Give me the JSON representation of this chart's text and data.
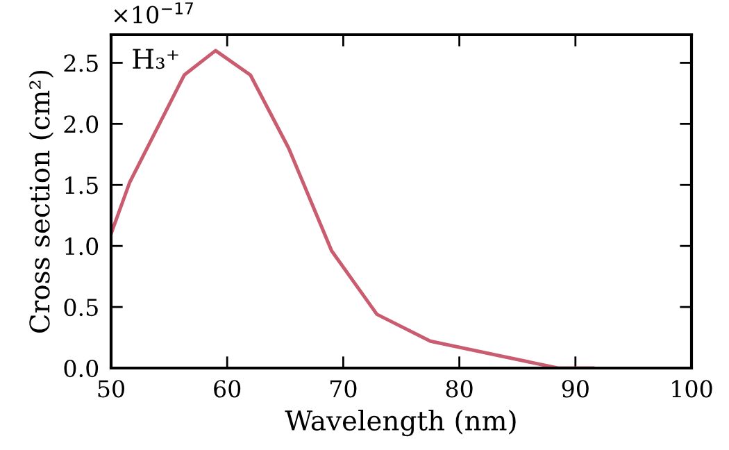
{
  "chart_data": {
    "type": "line",
    "xlabel": "Wavelength (nm)",
    "ylabel": "Cross section (cm²)",
    "annotations": [
      "×10$^{−17}$",
      "H₃⁺"
    ],
    "x": [
      50,
      51.6,
      56.3,
      59,
      62,
      65.3,
      69,
      72.9,
      77.5,
      88.5,
      91.5
    ],
    "series": [
      {
        "color": "#c95c6f",
        "values": [
          1.1,
          1.52,
          2.4,
          2.6,
          2.4,
          1.8,
          0.96,
          0.44,
          0.22,
          0,
          0
        ]
      }
    ],
    "xlim": [
      50,
      100
    ],
    "xticks": [
      50,
      60,
      70,
      80,
      90,
      100
    ],
    "ylim": [
      0,
      2.73
    ],
    "yticks": [
      {
        "value": 0,
        "label": "0.0"
      },
      {
        "value": 0.5,
        "label": "0.5"
      },
      {
        "value": 1,
        "label": "1.0"
      },
      {
        "value": 1.5,
        "label": "1.5"
      },
      {
        "value": 2,
        "label": "2.0"
      },
      {
        "value": 2.5,
        "label": "2.5"
      }
    ],
    "grid": false,
    "line_style": "solid",
    "marker": "none"
  }
}
